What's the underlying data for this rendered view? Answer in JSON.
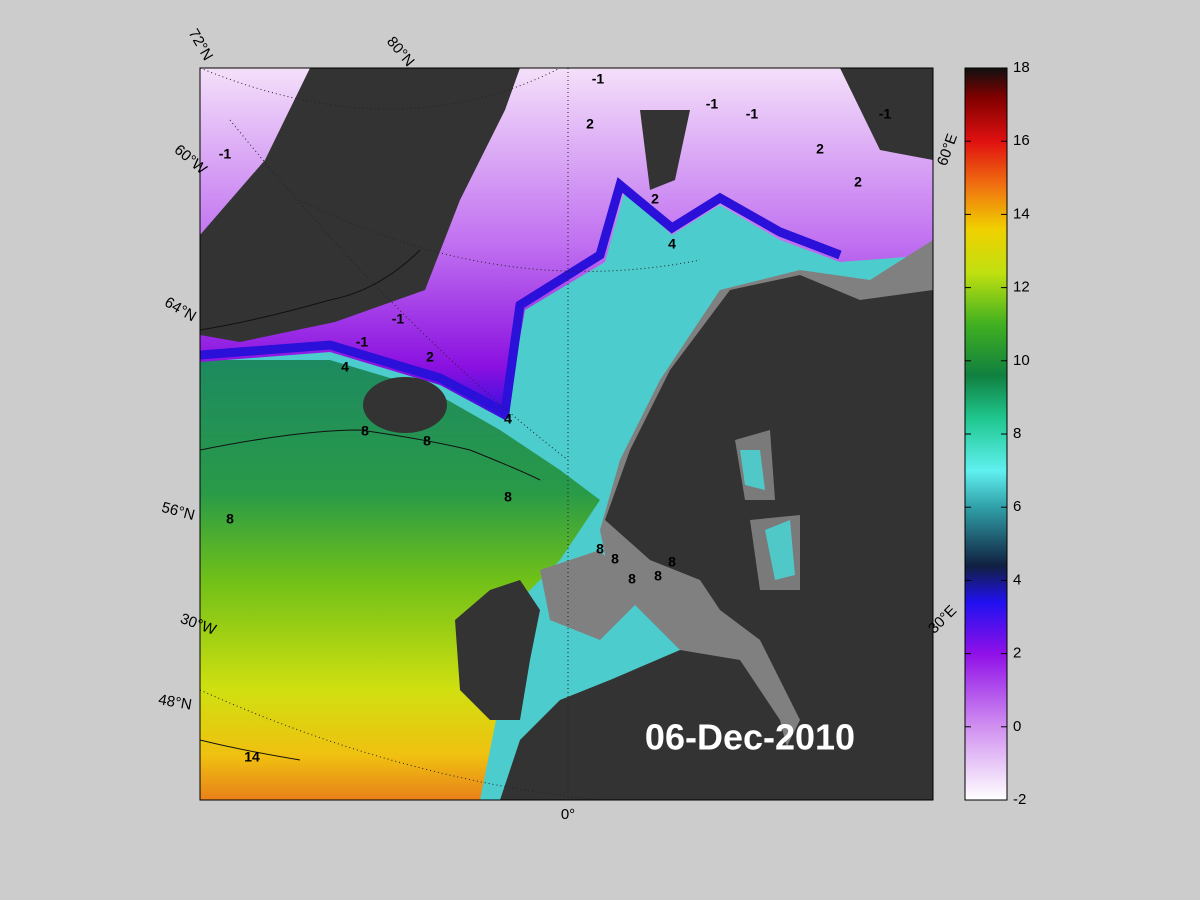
{
  "map": {
    "date_label": "06-Dec-2010",
    "graticule_labels": [
      "72°N",
      "80°N",
      "60°W",
      "64°N",
      "56°N",
      "30°W",
      "48°N",
      "0°",
      "30°E",
      "60°E"
    ],
    "contour_labels": [
      "-1",
      "-1",
      "-1",
      "-1",
      "-1",
      "2",
      "2",
      "2",
      "2",
      "4",
      "-1",
      "-1",
      "2",
      "4",
      "4",
      "8",
      "8",
      "8",
      "8",
      "8",
      "8",
      "8",
      "8",
      "8",
      "14"
    ]
  },
  "colorbar": {
    "range": [
      -2,
      18
    ],
    "ticks": [
      -2,
      0,
      2,
      4,
      6,
      8,
      10,
      12,
      14,
      16,
      18
    ]
  }
}
